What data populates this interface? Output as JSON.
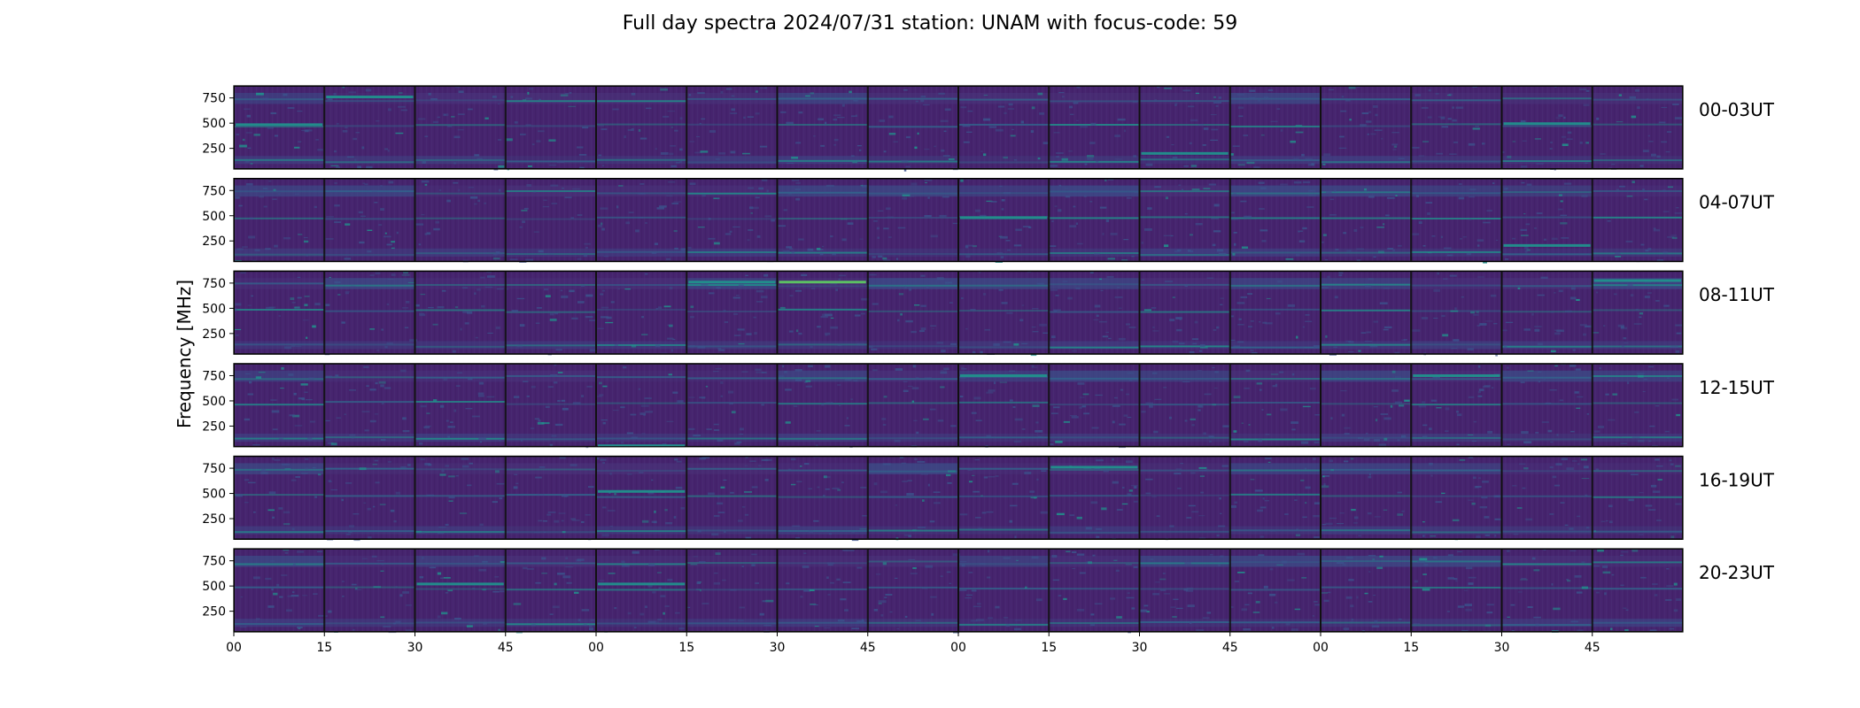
{
  "chart_data": {
    "type": "heatmap",
    "title": "Full day spectra 2024/07/31 station: UNAM with focus-code: 59",
    "ylabel": "Frequency [MHz]",
    "ylim": [
      45,
      870
    ],
    "y_ticks": [
      "750",
      "500",
      "250"
    ],
    "y_tick_values": [
      750,
      500,
      250
    ],
    "x_tick_labels": [
      "00",
      "15",
      "30",
      "45",
      "00",
      "15",
      "30",
      "45",
      "00",
      "15",
      "30",
      "45",
      "00",
      "15",
      "30",
      "45"
    ],
    "rows": [
      {
        "label": "00-03UT",
        "hours": "00-03"
      },
      {
        "label": "04-07UT",
        "hours": "04-07"
      },
      {
        "label": "08-11UT",
        "hours": "08-11"
      },
      {
        "label": "12-15UT",
        "hours": "12-15"
      },
      {
        "label": "16-19UT",
        "hours": "16-19"
      },
      {
        "label": "20-23UT",
        "hours": "20-23"
      }
    ],
    "panels_per_row": 16,
    "panel_minutes": 15,
    "colormap": {
      "name": "viridis",
      "background": "#46246e",
      "low": "#440154",
      "mid": "#3b518b",
      "high": "#21918c",
      "peak": "#5ec962"
    },
    "persistent_bands_mhz": [
      135,
      485,
      740
    ],
    "intense_features": [
      {
        "row": 0,
        "panel": 0,
        "freq": 485,
        "level": "high"
      },
      {
        "row": 0,
        "panel": 1,
        "freq": 760,
        "level": "high"
      },
      {
        "row": 0,
        "panel": 10,
        "freq": 200,
        "level": "high"
      },
      {
        "row": 0,
        "panel": 14,
        "freq": 495,
        "level": "high"
      },
      {
        "row": 1,
        "panel": 8,
        "freq": 480,
        "level": "high"
      },
      {
        "row": 1,
        "panel": 14,
        "freq": 205,
        "level": "high"
      },
      {
        "row": 2,
        "panel": 5,
        "freq": 760,
        "level": "high"
      },
      {
        "row": 2,
        "panel": 6,
        "freq": 760,
        "level": "peak"
      },
      {
        "row": 2,
        "panel": 15,
        "freq": 775,
        "level": "high"
      },
      {
        "row": 3,
        "panel": 4,
        "freq": 55,
        "level": "high"
      },
      {
        "row": 3,
        "panel": 8,
        "freq": 750,
        "level": "high"
      },
      {
        "row": 3,
        "panel": 13,
        "freq": 750,
        "level": "high"
      },
      {
        "row": 4,
        "panel": 4,
        "freq": 520,
        "level": "high"
      },
      {
        "row": 4,
        "panel": 9,
        "freq": 760,
        "level": "high"
      },
      {
        "row": 5,
        "panel": 2,
        "freq": 520,
        "level": "high"
      },
      {
        "row": 5,
        "panel": 4,
        "freq": 520,
        "level": "high"
      }
    ]
  }
}
